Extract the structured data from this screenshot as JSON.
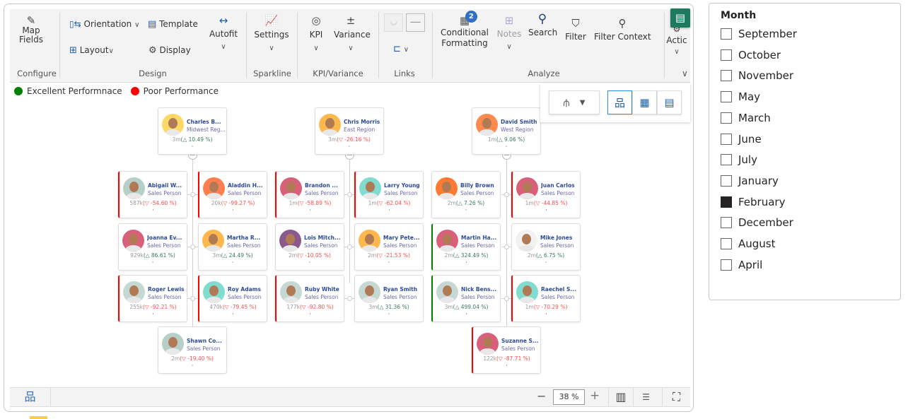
{
  "ribbon": {
    "map_fields": "Map Fields",
    "orientation": "Orientation",
    "template": "Template",
    "layout": "Layout",
    "display": "Display",
    "autofit": "Autofit",
    "settings": "Settings",
    "kpi": "KPI",
    "variance": "Variance",
    "conditional_formatting_1": "Conditional",
    "conditional_formatting_2": "Formatting",
    "conditional_formatting_badge": "2",
    "notes": "Notes",
    "search": "Search",
    "filter": "Filter",
    "filter_context": "Filter Context",
    "actions": "Actic",
    "groups": {
      "configure": "Configure",
      "design": "Design",
      "sparkline": "Sparkline",
      "kpi_variance": "KPI/Variance",
      "links": "Links",
      "analyze": "Analyze"
    }
  },
  "legend": [
    {
      "label": "Excellent Performnace",
      "color": "#008000"
    },
    {
      "label": "Poor Performance",
      "color": "#ff0000"
    }
  ],
  "colors": {
    "positive": "#3a7a5a",
    "negative": "#ff4d4d",
    "accent": "#1e7a5e",
    "name": "#2b4a9a"
  },
  "nodes": [
    {
      "name": "Charles B...",
      "role": "Midwest Reg...",
      "value": "3m",
      "pct": "10.49 %",
      "dir": "up",
      "flag": "",
      "avatar": "#ffd966"
    },
    {
      "name": "Chris Morris",
      "role": "East Region",
      "value": "3m",
      "pct": "-26.16 %",
      "dir": "down",
      "flag": "",
      "avatar": "#ffb84d"
    },
    {
      "name": "David Smith",
      "role": "West Region",
      "value": "1m",
      "pct": "9.06 %",
      "dir": "up",
      "flag": "",
      "avatar": "#ff8a4d"
    },
    {
      "name": "Abigail W...",
      "role": "Sales Person",
      "value": "587k",
      "pct": "-54.60 %",
      "dir": "down",
      "flag": "poor",
      "avatar": "#b7cfc9"
    },
    {
      "name": "Aladdin H...",
      "role": "Sales Person",
      "value": "20k",
      "pct": "-99.27 %",
      "dir": "down",
      "flag": "poor",
      "avatar": "#ff7f50"
    },
    {
      "name": "Brandon ...",
      "role": "Sales Person",
      "value": "1m",
      "pct": "-58.89 %",
      "dir": "down",
      "flag": "poor",
      "avatar": "#d9607a"
    },
    {
      "name": "Larry Young",
      "role": "Sales Person",
      "value": "1m",
      "pct": "-62.04 %",
      "dir": "down",
      "flag": "poor",
      "avatar": "#7fdccf"
    },
    {
      "name": "Billy Brown",
      "role": "Sales Person",
      "value": "2m",
      "pct": "7.26 %",
      "dir": "up",
      "flag": "",
      "avatar": "#ff7a33"
    },
    {
      "name": "Juan Carlos",
      "role": "Sales Person",
      "value": "1m",
      "pct": "-44.85 %",
      "dir": "down",
      "flag": "poor",
      "avatar": "#d9607a"
    },
    {
      "name": "Joanna Ev...",
      "role": "Sales Person",
      "value": "929k",
      "pct": "86.61 %",
      "dir": "up",
      "flag": "",
      "avatar": "#d9607a"
    },
    {
      "name": "Martha R...",
      "role": "Sales Person",
      "value": "3m",
      "pct": "24.49 %",
      "dir": "up",
      "flag": "",
      "avatar": "#ffb84d"
    },
    {
      "name": "Lois Mitch...",
      "role": "Sales Person",
      "value": "2m",
      "pct": "-10.05 %",
      "dir": "down",
      "flag": "",
      "avatar": "#8a5a8a"
    },
    {
      "name": "Mary Pete...",
      "role": "Sales Person",
      "value": "2m",
      "pct": "-21.53 %",
      "dir": "down",
      "flag": "",
      "avatar": "#ffb84d"
    },
    {
      "name": "Martin Ha...",
      "role": "Sales Person",
      "value": "2m",
      "pct": "324.49 %",
      "dir": "up",
      "flag": "excellent",
      "avatar": "#d9607a"
    },
    {
      "name": "Mike Jones",
      "role": "Sales Person",
      "value": "2m",
      "pct": "6.75 %",
      "dir": "up",
      "flag": "",
      "avatar": "#f2f2f2"
    },
    {
      "name": "Roger Lewis",
      "role": "Sales Person",
      "value": "255k",
      "pct": "-92.21 %",
      "dir": "down",
      "flag": "poor",
      "avatar": "#c5d8d3"
    },
    {
      "name": "Roy Adams",
      "role": "Sales Person",
      "value": "470k",
      "pct": "-79.45 %",
      "dir": "down",
      "flag": "poor",
      "avatar": "#7fdccf"
    },
    {
      "name": "Ruby White",
      "role": "Sales Person",
      "value": "177k",
      "pct": "-92.80 %",
      "dir": "down",
      "flag": "poor",
      "avatar": "#c5d8d3"
    },
    {
      "name": "Ryan Smith",
      "role": "Sales Person",
      "value": "3m",
      "pct": "31.36 %",
      "dir": "up",
      "flag": "",
      "avatar": "#c5d8d3"
    },
    {
      "name": "Nick Bens...",
      "role": "Sales Person",
      "value": "3m",
      "pct": "499.04 %",
      "dir": "up",
      "flag": "excellent",
      "avatar": "#c5d8d3"
    },
    {
      "name": "Raechel S...",
      "role": "Sales Person",
      "value": "1m",
      "pct": "-70.29 %",
      "dir": "down",
      "flag": "poor",
      "avatar": "#7fdccf"
    },
    {
      "name": "Shawn Co...",
      "role": "Sales Person",
      "value": "2m",
      "pct": "-19.40 %",
      "dir": "down",
      "flag": "",
      "avatar": "#b7cfc9"
    },
    {
      "name": "Suzanne S...",
      "role": "Sales Person",
      "value": "122k",
      "pct": "-87.71 %",
      "dir": "down",
      "flag": "poor",
      "avatar": "#d9607a"
    }
  ],
  "bottombar": {
    "zoom": "38 %"
  },
  "slicer": {
    "title": "Month",
    "items": [
      {
        "label": "September",
        "checked": false
      },
      {
        "label": "October",
        "checked": false
      },
      {
        "label": "November",
        "checked": false
      },
      {
        "label": "May",
        "checked": false
      },
      {
        "label": "March",
        "checked": false
      },
      {
        "label": "June",
        "checked": false
      },
      {
        "label": "July",
        "checked": false
      },
      {
        "label": "January",
        "checked": false
      },
      {
        "label": "February",
        "checked": true
      },
      {
        "label": "December",
        "checked": false
      },
      {
        "label": "August",
        "checked": false
      },
      {
        "label": "April",
        "checked": false
      }
    ]
  }
}
